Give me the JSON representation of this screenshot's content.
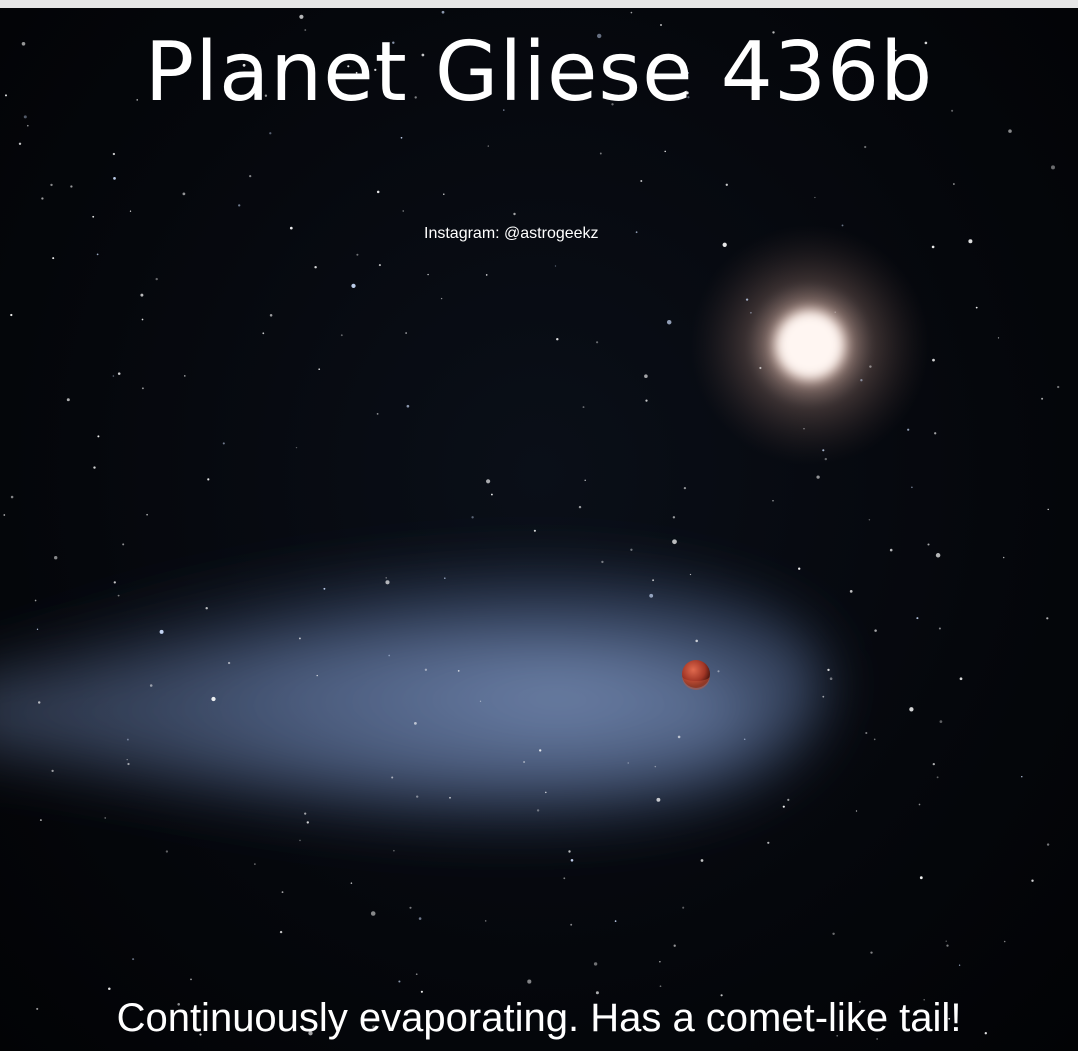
{
  "title": "Planet Gliese 436b",
  "credit": "Instagram: @astrogeekz",
  "caption": "Continuously evaporating. Has a comet-like tail!",
  "colors": {
    "background": "#05070c",
    "star_glow": "#f3dcd2",
    "tail": "#7c95c2",
    "planet": "#b0402c",
    "text": "#ffffff"
  }
}
